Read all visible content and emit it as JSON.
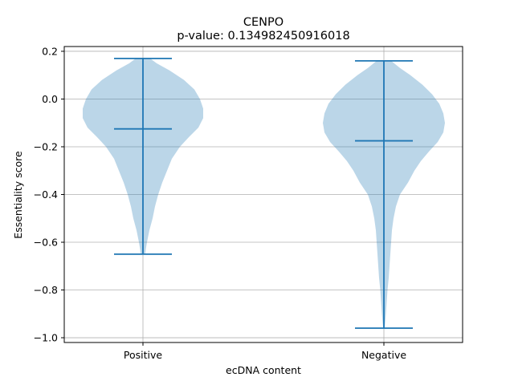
{
  "chart_data": {
    "type": "violin",
    "title": "CENPO",
    "subtitle": "p-value: 0.134982450916018",
    "xlabel": "ecDNA content",
    "ylabel": "Essentiality score",
    "categories": [
      "Positive",
      "Negative"
    ],
    "ylim": [
      -1.02,
      0.22
    ],
    "yticks": [
      0.2,
      0.0,
      -0.2,
      -0.4,
      -0.6,
      -0.8,
      -1.0
    ],
    "ytick_labels": [
      "0.2",
      "0.0",
      "−0.2",
      "−0.4",
      "−0.6",
      "−0.8",
      "−1.0"
    ],
    "grid": true,
    "colors": {
      "body": "#1f77b4",
      "body_alpha": 0.3,
      "lines": "#1f77b4",
      "grid": "#b0b0b0"
    },
    "series": [
      {
        "category": "Positive",
        "min": -0.65,
        "median": -0.125,
        "max": 0.17,
        "density": [
          [
            0.17,
            0.09
          ],
          [
            0.15,
            0.17
          ],
          [
            0.12,
            0.33
          ],
          [
            0.08,
            0.51
          ],
          [
            0.04,
            0.64
          ],
          [
            0.0,
            0.71
          ],
          [
            -0.04,
            0.75
          ],
          [
            -0.08,
            0.75
          ],
          [
            -0.12,
            0.69
          ],
          [
            -0.16,
            0.57
          ],
          [
            -0.2,
            0.46
          ],
          [
            -0.25,
            0.36
          ],
          [
            -0.3,
            0.3
          ],
          [
            -0.35,
            0.24
          ],
          [
            -0.4,
            0.19
          ],
          [
            -0.45,
            0.15
          ],
          [
            -0.5,
            0.12
          ],
          [
            -0.55,
            0.08
          ],
          [
            -0.6,
            0.05
          ],
          [
            -0.63,
            0.035
          ],
          [
            -0.65,
            0.03
          ]
        ]
      },
      {
        "category": "Negative",
        "min": -0.96,
        "median": -0.175,
        "max": 0.16,
        "density": [
          [
            0.16,
            0.09
          ],
          [
            0.13,
            0.2
          ],
          [
            0.1,
            0.33
          ],
          [
            0.06,
            0.48
          ],
          [
            0.02,
            0.6
          ],
          [
            -0.02,
            0.69
          ],
          [
            -0.06,
            0.74
          ],
          [
            -0.1,
            0.76
          ],
          [
            -0.14,
            0.74
          ],
          [
            -0.18,
            0.67
          ],
          [
            -0.22,
            0.56
          ],
          [
            -0.26,
            0.46
          ],
          [
            -0.3,
            0.38
          ],
          [
            -0.35,
            0.3
          ],
          [
            -0.4,
            0.2
          ],
          [
            -0.45,
            0.15
          ],
          [
            -0.5,
            0.12
          ],
          [
            -0.55,
            0.1
          ],
          [
            -0.6,
            0.09
          ],
          [
            -0.65,
            0.08
          ],
          [
            -0.7,
            0.07
          ],
          [
            -0.75,
            0.06
          ],
          [
            -0.8,
            0.045
          ],
          [
            -0.85,
            0.035
          ],
          [
            -0.9,
            0.025
          ],
          [
            -0.94,
            0.015
          ],
          [
            -0.96,
            0.008
          ]
        ]
      }
    ]
  }
}
